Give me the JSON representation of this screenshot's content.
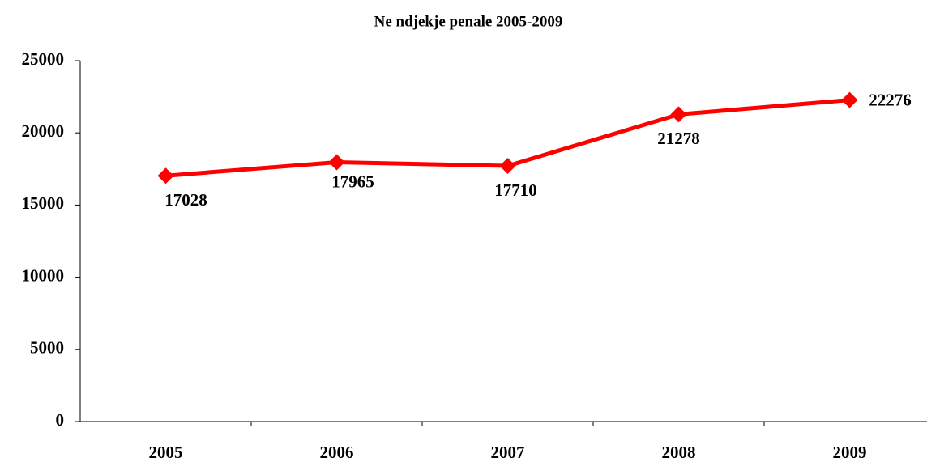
{
  "chart_data": {
    "type": "line",
    "title": "Ne ndjekje penale 2005-2009",
    "categories": [
      "2005",
      "2006",
      "2007",
      "2008",
      "2009"
    ],
    "series": [
      {
        "name": "Ne ndjekje penale",
        "color": "#ff0000",
        "values": [
          17028,
          17965,
          17710,
          21278,
          22276
        ]
      }
    ],
    "ylim": [
      0,
      25000
    ],
    "yticks": [
      0,
      5000,
      10000,
      15000,
      20000,
      25000
    ],
    "grid": false,
    "legend": false
  }
}
